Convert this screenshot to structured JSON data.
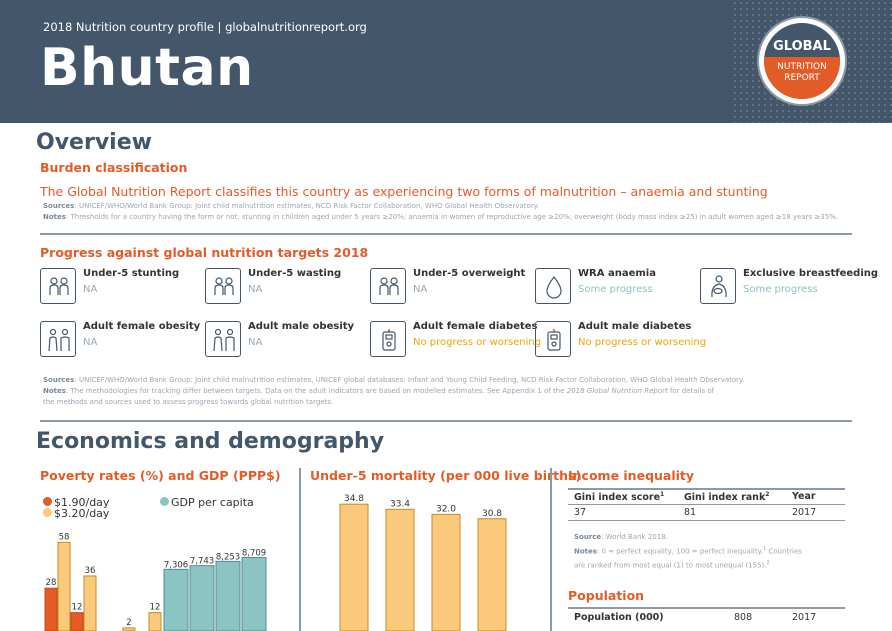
{
  "header": {
    "subtitle": "2018 Nutrition country profile  |  globalnutritionreport.org",
    "country": "Bhutan",
    "logo": {
      "top": "GLOBAL",
      "bottom_line1": "NUTRITION",
      "bottom_line2": "REPORT"
    }
  },
  "overview": {
    "title": "Overview",
    "burden_heading": "Burden classification",
    "burden_text": "The Global Nutrition Report classifies this country as experiencing two forms of malnutrition – anaemia and stunting",
    "burden_sources_label": "Sources",
    "burden_sources": ": UNICEF/WHO/World Bank Group: Joint child malnutrition estimates, NCD Risk Factor Collaboration, WHO Global Health Observatory.",
    "burden_notes_label": "Notes",
    "burden_notes": ": Thresholds for a country having the form or not: stunting in children aged under 5 years ≥20%; anaemia in women of reproductive age ≥20%; overweight (body mass index ≥25) in adult women aged ≥18 years ≥35%.",
    "progress_heading": "Progress against global nutrition targets 2018",
    "targets": [
      {
        "label": "Under-5 stunting",
        "status": "NA",
        "kind": "na",
        "icon": "children-icon"
      },
      {
        "label": "Under-5 wasting",
        "status": "NA",
        "kind": "na",
        "icon": "children-icon"
      },
      {
        "label": "Under-5 overweight",
        "status": "NA",
        "kind": "na",
        "icon": "children-icon"
      },
      {
        "label": "WRA anaemia",
        "status": "Some progress",
        "kind": "some",
        "icon": "blood-drop-icon"
      },
      {
        "label": "Exclusive breastfeeding",
        "status": "Some progress",
        "kind": "some",
        "icon": "breastfeeding-icon"
      },
      {
        "label": "Adult female obesity",
        "status": "NA",
        "kind": "na",
        "icon": "adults-icon"
      },
      {
        "label": "Adult male obesity",
        "status": "NA",
        "kind": "na",
        "icon": "adults-icon"
      },
      {
        "label": "Adult female diabetes",
        "status": "No progress or worsening",
        "kind": "no",
        "icon": "glucose-meter-icon"
      },
      {
        "label": "Adult male diabetes",
        "status": "No progress or worsening",
        "kind": "no",
        "icon": "glucose-meter-icon"
      }
    ],
    "progress_sources_label": "Sources",
    "progress_sources": ": UNICEF/WHO/World Bank Group: Joint child malnutrition estimates, UNICEF global databases: Infant and Young Child Feeding, NCD Risk Factor Collaboration, WHO Global Health Observatory.",
    "progress_notes_label": "Notes",
    "progress_notes_1": ": The methodologies for tracking differ between targets. Data on the adult indicators are based on modelled estimates. See Appendix 1 of the ",
    "progress_notes_italic": "2018 Global Nutrition Report",
    "progress_notes_2": " for details of",
    "progress_notes_3": "the methods and sources used to assess progress towards global nutrition targets."
  },
  "economics": {
    "title": "Economics and demography",
    "poverty_heading": "Poverty rates (%) and GDP (PPP$)",
    "mortality_heading": "Under-5 mortality (per 000 live births)",
    "inequality_heading": "Income inequality",
    "inequality_table": {
      "headers": [
        "Gini index score",
        "Gini index rank",
        "Year"
      ],
      "sups": [
        "1",
        "2",
        ""
      ],
      "row": [
        "37",
        "81",
        "2017"
      ]
    },
    "inequality_source_label": "Source",
    "inequality_source": ": World Bank 2018.",
    "inequality_notes_label": "Notes",
    "inequality_notes_1": ": 0 = perfect equality, 100 = perfect inequality.",
    "inequality_notes_sup1": "1",
    "inequality_notes_1b": " Countries",
    "inequality_notes_2": "are ranked from most equal (1) to most unequal (155).",
    "inequality_notes_sup2": "2",
    "population_heading": "Population",
    "population_table": {
      "label": "Population (000)",
      "value": "808",
      "year": "2017"
    }
  },
  "colors": {
    "orange": "#e35c27",
    "light_orange": "#fbc97c",
    "dark_orange": "#f0a500",
    "teal": "#8cc3c3",
    "navy": "#43566a"
  },
  "chart_data": [
    {
      "type": "bar",
      "title": "Poverty rates (%) and GDP (PPP$)",
      "series": [
        {
          "name": "$1.90/day",
          "values": [
            28,
            12,
            null,
            null,
            null
          ]
        },
        {
          "name": "$3.20/day",
          "values": [
            58,
            36,
            2,
            12,
            null
          ]
        }
      ],
      "gdp_series": {
        "name": "GDP per capita",
        "values": [
          7306,
          7743,
          8253,
          8709
        ],
        "labels": [
          "7,306",
          "7,743",
          "8,253",
          "8,709"
        ]
      },
      "value_labels_190": [
        "28",
        "12",
        "",
        "",
        ""
      ],
      "value_labels_320": [
        "58",
        "36",
        "2",
        "12",
        ""
      ],
      "poverty_ylim": [
        0,
        110
      ],
      "gdp_ylim": [
        0,
        16500
      ]
    },
    {
      "type": "bar",
      "title": "Under-5 mortality (per 000 live births)",
      "values": [
        34.8,
        33.4,
        32.0,
        30.8
      ],
      "labels": [
        "34.8",
        "33.4",
        "32.0",
        "30.8"
      ],
      "ylim": [
        0,
        65
      ]
    }
  ]
}
